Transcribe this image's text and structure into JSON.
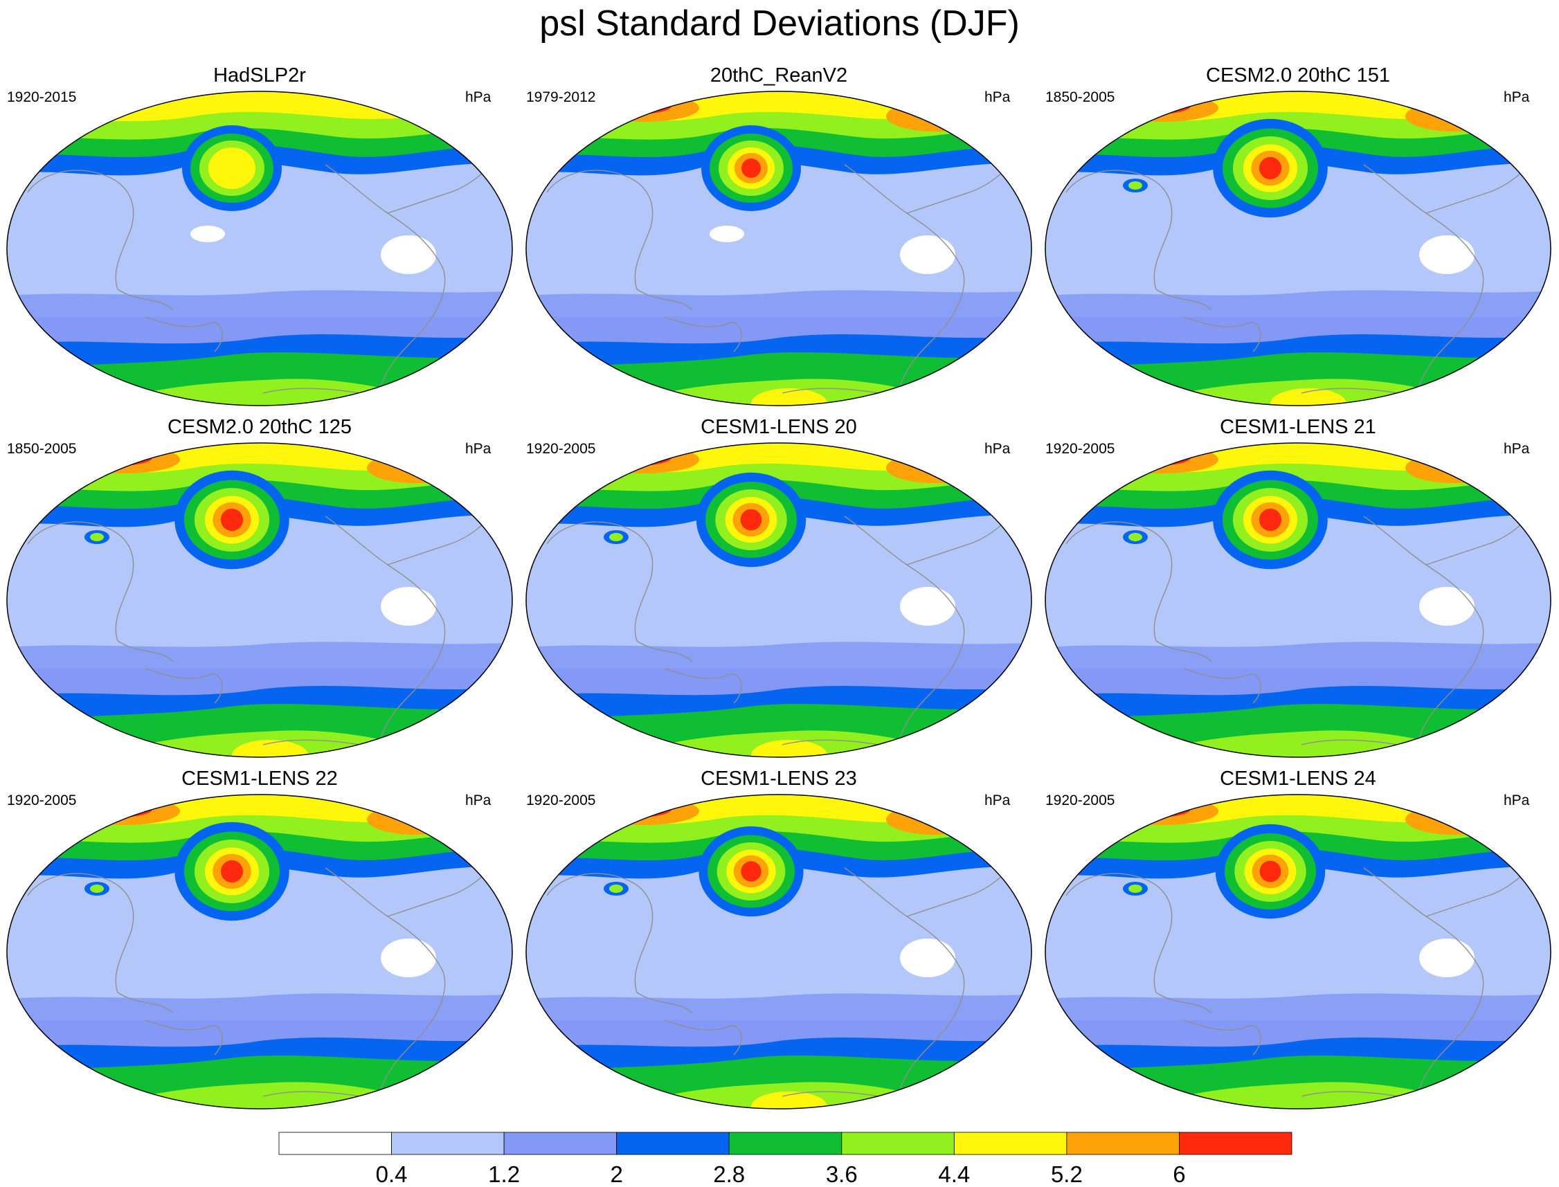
{
  "title": "psl Standard Deviations (DJF)",
  "units": "hPa",
  "colors": [
    "#ffffff",
    "#b4c7fa",
    "#8399f5",
    "#0564f0",
    "#10be34",
    "#92f01f",
    "#fff70b",
    "#fea209",
    "#ff2a0d"
  ],
  "coastline_color": "#8f8f8f",
  "colorbar": {
    "labels": [
      "0.4",
      "1.2",
      "2",
      "2.8",
      "3.6",
      "4.4",
      "5.2",
      "6"
    ]
  },
  "panels": [
    {
      "title": "HadSLP2r",
      "years": "1920-2015",
      "units": "hPa"
    },
    {
      "title": "20thC_ReanV2",
      "years": "1979-2012",
      "units": "hPa"
    },
    {
      "title": "CESM2.0 20thC 151",
      "years": "1850-2005",
      "units": "hPa"
    },
    {
      "title": "CESM2.0 20thC 125",
      "years": "1850-2005",
      "units": "hPa"
    },
    {
      "title": "CESM1-LENS 20",
      "years": "1920-2005",
      "units": "hPa"
    },
    {
      "title": "CESM1-LENS 21",
      "years": "1920-2005",
      "units": "hPa"
    },
    {
      "title": "CESM1-LENS 22",
      "years": "1920-2005",
      "units": "hPa"
    },
    {
      "title": "CESM1-LENS 23",
      "years": "1920-2005",
      "units": "hPa"
    },
    {
      "title": "CESM1-LENS 24",
      "years": "1920-2005",
      "units": "hPa"
    }
  ]
}
